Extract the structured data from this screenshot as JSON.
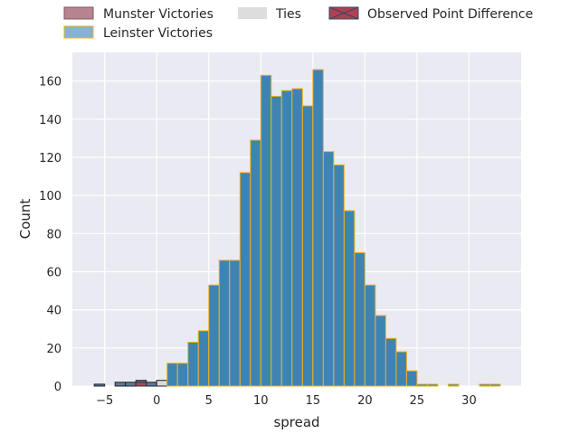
{
  "chart_data": {
    "type": "bar",
    "xlabel": "spread",
    "ylabel": "Count",
    "xlim": [
      -8.1,
      35.0
    ],
    "ylim": [
      0,
      175
    ],
    "x_ticks": [
      -5,
      0,
      5,
      10,
      15,
      20,
      25,
      30
    ],
    "x_tick_labels": [
      "−5",
      "0",
      "5",
      "10",
      "15",
      "20",
      "25",
      "30"
    ],
    "y_ticks": [
      0,
      20,
      40,
      60,
      80,
      100,
      120,
      140,
      160
    ],
    "grid": true,
    "bin_width": 1,
    "legend": {
      "placement": "top, above plot",
      "entries": [
        {
          "key": "munster",
          "label": "Munster Victories"
        },
        {
          "key": "leinster",
          "label": "Leinster Victories"
        },
        {
          "key": "ties",
          "label": "Ties"
        },
        {
          "key": "observed",
          "label": "Observed Point Difference"
        }
      ]
    },
    "series": [
      {
        "key": "munster",
        "name": "Munster Victories",
        "bins": [
          {
            "x0": -6,
            "x1": -5,
            "count": 1
          },
          {
            "x0": -4,
            "x1": -3,
            "count": 2
          },
          {
            "x0": -3,
            "x1": -2,
            "count": 2
          },
          {
            "x0": -2,
            "x1": -1,
            "count": 3
          },
          {
            "x0": -1,
            "x1": 0,
            "count": 2
          }
        ]
      },
      {
        "key": "ties",
        "name": "Ties",
        "bins": [
          {
            "x0": 0,
            "x1": 1,
            "count": 3
          }
        ]
      },
      {
        "key": "leinster",
        "name": "Leinster Victories",
        "bins": [
          {
            "x0": 1,
            "x1": 2,
            "count": 12
          },
          {
            "x0": 2,
            "x1": 3,
            "count": 12
          },
          {
            "x0": 3,
            "x1": 4,
            "count": 23
          },
          {
            "x0": 4,
            "x1": 5,
            "count": 29
          },
          {
            "x0": 5,
            "x1": 6,
            "count": 53
          },
          {
            "x0": 6,
            "x1": 7,
            "count": 66
          },
          {
            "x0": 7,
            "x1": 8,
            "count": 66
          },
          {
            "x0": 8,
            "x1": 9,
            "count": 112
          },
          {
            "x0": 9,
            "x1": 10,
            "count": 129
          },
          {
            "x0": 10,
            "x1": 11,
            "count": 163
          },
          {
            "x0": 11,
            "x1": 12,
            "count": 152
          },
          {
            "x0": 12,
            "x1": 13,
            "count": 155
          },
          {
            "x0": 13,
            "x1": 14,
            "count": 156
          },
          {
            "x0": 14,
            "x1": 15,
            "count": 147
          },
          {
            "x0": 15,
            "x1": 16,
            "count": 166
          },
          {
            "x0": 16,
            "x1": 17,
            "count": 123
          },
          {
            "x0": 17,
            "x1": 18,
            "count": 116
          },
          {
            "x0": 18,
            "x1": 19,
            "count": 92
          },
          {
            "x0": 19,
            "x1": 20,
            "count": 70
          },
          {
            "x0": 20,
            "x1": 21,
            "count": 53
          },
          {
            "x0": 21,
            "x1": 22,
            "count": 37
          },
          {
            "x0": 22,
            "x1": 23,
            "count": 25
          },
          {
            "x0": 23,
            "x1": 24,
            "count": 18
          },
          {
            "x0": 24,
            "x1": 25,
            "count": 8
          },
          {
            "x0": 25,
            "x1": 26,
            "count": 1
          },
          {
            "x0": 26,
            "x1": 27,
            "count": 1
          },
          {
            "x0": 28,
            "x1": 29,
            "count": 1
          },
          {
            "x0": 31,
            "x1": 32,
            "count": 1
          },
          {
            "x0": 32,
            "x1": 33,
            "count": 1
          }
        ]
      },
      {
        "key": "observed",
        "name": "Observed Point Difference",
        "bins": [
          {
            "x0": -2,
            "x1": -1,
            "count": 2
          }
        ]
      }
    ],
    "colors": {
      "background": "#eaeaf2",
      "grid": "#ffffff",
      "munster_fill": "#5b7a9c",
      "munster_edge": "#222222",
      "leinster_fill": "#3e84b3",
      "leinster_edge": "#f0b21a",
      "ties_fill": "#d9d9de",
      "ties_edge": "#222222",
      "observed_fill": "#b04052",
      "observed_edge": "#333333",
      "legend_munster_fill": "#b8848f",
      "legend_munster_edge": "#7a5a62",
      "legend_leinster_fill": "#84b2db",
      "legend_leinster_edge": "#f0b21a",
      "legend_ties_fill": "#dddddd",
      "legend_observed_fill": "#b04052",
      "legend_observed_edge": "#334a66",
      "text": "#262626"
    }
  }
}
